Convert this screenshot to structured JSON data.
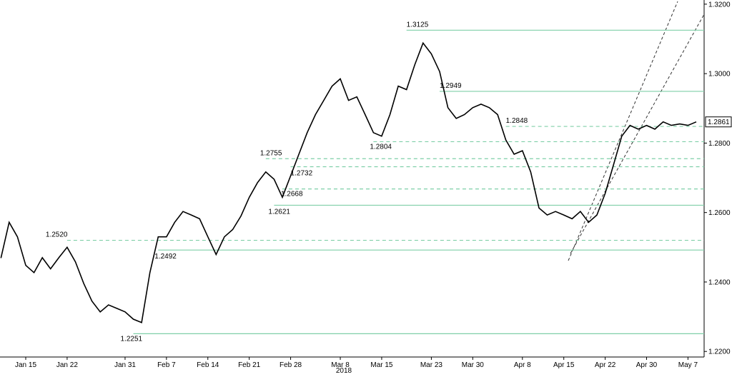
{
  "chart_data": {
    "type": "line",
    "year_label": "2018",
    "series": [
      {
        "color": "#000000",
        "x": [
          "2018-01-10",
          "2018-01-11",
          "2018-01-12",
          "2018-01-15",
          "2018-01-16",
          "2018-01-17",
          "2018-01-18",
          "2018-01-19",
          "2018-01-22",
          "2018-01-23",
          "2018-01-24",
          "2018-01-25",
          "2018-01-26",
          "2018-01-29",
          "2018-01-30",
          "2018-01-31",
          "2018-02-01",
          "2018-02-02",
          "2018-02-05",
          "2018-02-06",
          "2018-02-07",
          "2018-02-08",
          "2018-02-09",
          "2018-02-12",
          "2018-02-13",
          "2018-02-14",
          "2018-02-15",
          "2018-02-16",
          "2018-02-19",
          "2018-02-20",
          "2018-02-21",
          "2018-02-22",
          "2018-02-23",
          "2018-02-26",
          "2018-02-27",
          "2018-02-28",
          "2018-03-01",
          "2018-03-02",
          "2018-03-05",
          "2018-03-06",
          "2018-03-07",
          "2018-03-08",
          "2018-03-09",
          "2018-03-12",
          "2018-03-13",
          "2018-03-14",
          "2018-03-15",
          "2018-03-16",
          "2018-03-19",
          "2018-03-20",
          "2018-03-21",
          "2018-03-22",
          "2018-03-23",
          "2018-03-26",
          "2018-03-27",
          "2018-03-28",
          "2018-03-29",
          "2018-03-30",
          "2018-04-02",
          "2018-04-03",
          "2018-04-04",
          "2018-04-05",
          "2018-04-06",
          "2018-04-09",
          "2018-04-10",
          "2018-04-11",
          "2018-04-12",
          "2018-04-13",
          "2018-04-16",
          "2018-04-17",
          "2018-04-18",
          "2018-04-19",
          "2018-04-20",
          "2018-04-23",
          "2018-04-24",
          "2018-04-25",
          "2018-04-26",
          "2018-04-27",
          "2018-04-30",
          "2018-05-01",
          "2018-05-02",
          "2018-05-03",
          "2018-05-04",
          "2018-05-07",
          "2018-05-08"
        ],
        "values": [
          1.2469,
          1.2572,
          1.253,
          1.2448,
          1.2427,
          1.247,
          1.2438,
          1.247,
          1.25,
          1.2458,
          1.2396,
          1.2345,
          1.2314,
          1.2334,
          1.2324,
          1.2314,
          1.2293,
          1.2283,
          1.2427,
          1.253,
          1.253,
          1.2572,
          1.2603,
          1.2593,
          1.2582,
          1.253,
          1.2479,
          1.253,
          1.2551,
          1.259,
          1.2644,
          1.2686,
          1.2717,
          1.2696,
          1.2644,
          1.2706,
          1.2768,
          1.283,
          1.2882,
          1.2923,
          1.2964,
          1.2985,
          1.2923,
          1.2933,
          1.2882,
          1.283,
          1.282,
          1.2882,
          1.2964,
          1.2954,
          1.3026,
          1.3088,
          1.3057,
          1.3006,
          1.2902,
          1.2871,
          1.2882,
          1.2902,
          1.2912,
          1.2902,
          1.2882,
          1.2809,
          1.2768,
          1.2778,
          1.2717,
          1.2613,
          1.2593,
          1.2603,
          1.2593,
          1.2582,
          1.2603,
          1.2572,
          1.2593,
          1.2655,
          1.2737,
          1.282,
          1.2851,
          1.284,
          1.2851,
          1.284,
          1.2861,
          1.2851,
          1.2855,
          1.2851,
          1.2861
        ]
      }
    ],
    "levels": [
      {
        "value": 1.3125,
        "label": "1.3125",
        "start": "2018-03-20",
        "style": "solid"
      },
      {
        "value": 1.2949,
        "label": "1.2949",
        "start": "2018-03-26",
        "style": "solid"
      },
      {
        "value": 1.2848,
        "label": "1.2848",
        "start": "2018-04-05",
        "style": "dashed"
      },
      {
        "value": 1.2804,
        "label": "1.2804",
        "start": "2018-03-14",
        "style": "dashed"
      },
      {
        "value": 1.2755,
        "label": "1.2755",
        "start": "2018-02-23",
        "style": "dashed"
      },
      {
        "value": 1.2732,
        "label": "1.2732",
        "start": "2018-02-28",
        "style": "dashed"
      },
      {
        "value": 1.2668,
        "label": "1.2668",
        "start": "2018-02-27",
        "style": "dashed"
      },
      {
        "value": 1.2621,
        "label": "1.2621",
        "start": "2018-02-26",
        "style": "solid"
      },
      {
        "value": 1.252,
        "label": "1.2520",
        "start": "2018-01-22",
        "style": "dashed"
      },
      {
        "value": 1.2492,
        "label": "1.2492",
        "start": "2018-02-06",
        "style": "solid"
      },
      {
        "value": 1.2251,
        "label": "1.2251",
        "start": "2018-02-01",
        "style": "solid"
      }
    ],
    "level_color": "#7fcfa8",
    "last_price": {
      "value": 1.2861,
      "label": "1.2861"
    },
    "ylim": [
      1.2184,
      1.3212
    ],
    "yticks": [
      {
        "value": 1.22,
        "label": "1.2200"
      },
      {
        "value": 1.24,
        "label": "1.2400"
      },
      {
        "value": 1.26,
        "label": "1.2600"
      },
      {
        "value": 1.28,
        "label": "1.2800"
      },
      {
        "value": 1.3,
        "label": "1.3000"
      },
      {
        "value": 1.32,
        "label": "1.3200"
      }
    ],
    "xticks": [
      {
        "value": "2018-01-15",
        "label": "Jan 15"
      },
      {
        "value": "2018-01-22",
        "label": "Jan 22"
      },
      {
        "value": "2018-01-31",
        "label": "Jan 31"
      },
      {
        "value": "2018-02-07",
        "label": "Feb 7"
      },
      {
        "value": "2018-02-14",
        "label": "Feb 14"
      },
      {
        "value": "2018-02-21",
        "label": "Feb 21"
      },
      {
        "value": "2018-02-28",
        "label": "Feb 28"
      },
      {
        "value": "2018-03-08",
        "label": "Mar 8"
      },
      {
        "value": "2018-03-15",
        "label": "Mar 15"
      },
      {
        "value": "2018-03-23",
        "label": "Mar 23"
      },
      {
        "value": "2018-03-30",
        "label": "Mar 30"
      },
      {
        "value": "2018-04-08",
        "label": "Apr 8"
      },
      {
        "value": "2018-04-15",
        "label": "Apr 15"
      },
      {
        "value": "2018-04-22",
        "label": "Apr 22"
      },
      {
        "value": "2018-04-30",
        "label": "Apr 30"
      },
      {
        "value": "2018-05-07",
        "label": "May 7"
      }
    ]
  }
}
